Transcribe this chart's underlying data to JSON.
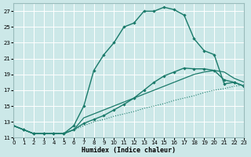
{
  "xlabel": "Humidex (Indice chaleur)",
  "bg_color": "#cce8e8",
  "grid_color": "#ffffff",
  "line_color": "#1a7a6a",
  "xlim": [
    0,
    23
  ],
  "ylim": [
    11,
    28
  ],
  "yticks": [
    11,
    13,
    15,
    17,
    19,
    21,
    23,
    25,
    27
  ],
  "xticks": [
    0,
    1,
    2,
    3,
    4,
    5,
    6,
    7,
    8,
    9,
    10,
    11,
    12,
    13,
    14,
    15,
    16,
    17,
    18,
    19,
    20,
    21,
    22,
    23
  ],
  "series": [
    {
      "x": [
        0,
        1,
        2,
        3,
        4,
        5,
        6,
        7,
        8,
        9,
        10,
        11,
        12,
        13,
        14,
        15,
        16,
        17,
        18,
        19,
        20,
        21,
        22,
        23
      ],
      "y": [
        12.5,
        12.0,
        11.5,
        11.5,
        11.5,
        11.5,
        12.0,
        12.5,
        13.0,
        13.3,
        13.7,
        14.0,
        14.3,
        14.7,
        15.0,
        15.3,
        15.7,
        16.0,
        16.3,
        16.7,
        17.0,
        17.2,
        17.5,
        17.7
      ],
      "marker": false,
      "linestyle": "dotted",
      "linewidth": 0.8
    },
    {
      "x": [
        0,
        1,
        2,
        3,
        4,
        5,
        6,
        7,
        8,
        9,
        10,
        11,
        12,
        13,
        14,
        15,
        16,
        17,
        18,
        19,
        20,
        21,
        22,
        23
      ],
      "y": [
        12.5,
        12.0,
        11.5,
        11.5,
        11.5,
        11.5,
        12.0,
        13.5,
        14.0,
        14.5,
        15.0,
        15.5,
        16.0,
        16.5,
        17.0,
        17.5,
        18.0,
        18.5,
        19.0,
        19.3,
        19.5,
        19.3,
        18.5,
        18.0
      ],
      "marker": false,
      "linestyle": "solid",
      "linewidth": 0.9
    },
    {
      "x": [
        0,
        1,
        2,
        3,
        4,
        5,
        6,
        7,
        8,
        9,
        10,
        11,
        12,
        13,
        14,
        15,
        16,
        17,
        18,
        19,
        20,
        21,
        22,
        23
      ],
      "y": [
        12.5,
        12.0,
        11.5,
        11.5,
        11.5,
        11.5,
        12.5,
        15.0,
        19.5,
        21.5,
        23.0,
        25.0,
        25.5,
        27.0,
        27.0,
        27.5,
        27.2,
        26.5,
        23.5,
        22.0,
        21.5,
        17.8,
        18.0,
        17.5
      ],
      "marker": true,
      "linestyle": "solid",
      "linewidth": 1.0
    },
    {
      "x": [
        0,
        1,
        2,
        3,
        4,
        5,
        6,
        7,
        8,
        9,
        10,
        11,
        12,
        13,
        14,
        15,
        16,
        17,
        18,
        19,
        20,
        21,
        22,
        23
      ],
      "y": [
        12.5,
        12.0,
        11.5,
        11.5,
        11.5,
        11.5,
        12.0,
        12.8,
        13.3,
        13.8,
        14.5,
        15.2,
        16.0,
        17.0,
        18.0,
        18.8,
        19.3,
        19.8,
        19.7,
        19.7,
        19.5,
        18.3,
        18.0,
        17.5
      ],
      "marker": true,
      "linestyle": "solid",
      "linewidth": 1.0
    }
  ]
}
